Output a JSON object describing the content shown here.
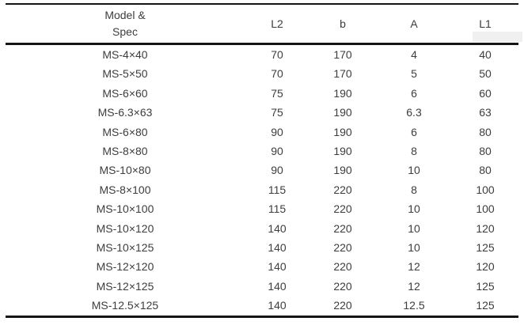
{
  "colors": {
    "text": "#3d3d3d",
    "rule": "#141414",
    "background": "#ffffff"
  },
  "table": {
    "columns": [
      "Model &\nSpec",
      "L2",
      "b",
      "A",
      "L1"
    ],
    "rows": [
      [
        "MS-4×40",
        "70",
        "170",
        "4",
        "40"
      ],
      [
        "MS-5×50",
        "70",
        "170",
        "5",
        "50"
      ],
      [
        "MS-6×60",
        "75",
        "190",
        "6",
        "60"
      ],
      [
        "MS-6.3×63",
        "75",
        "190",
        "6.3",
        "63"
      ],
      [
        "MS-6×80",
        "90",
        "190",
        "6",
        "80"
      ],
      [
        "MS-8×80",
        "90",
        "190",
        "8",
        "80"
      ],
      [
        "MS-10×80",
        "90",
        "190",
        "10",
        "80"
      ],
      [
        "MS-8×100",
        "115",
        "220",
        "8",
        "100"
      ],
      [
        "MS-10×100",
        "115",
        "220",
        "10",
        "100"
      ],
      [
        "MS-10×120",
        "140",
        "220",
        "10",
        "120"
      ],
      [
        "MS-10×125",
        "140",
        "220",
        "10",
        "125"
      ],
      [
        "MS-12×120",
        "140",
        "220",
        "12",
        "120"
      ],
      [
        "MS-12×125",
        "140",
        "220",
        "12",
        "125"
      ],
      [
        "MS-12.5×125",
        "140",
        "220",
        "12.5",
        "125"
      ]
    ]
  }
}
